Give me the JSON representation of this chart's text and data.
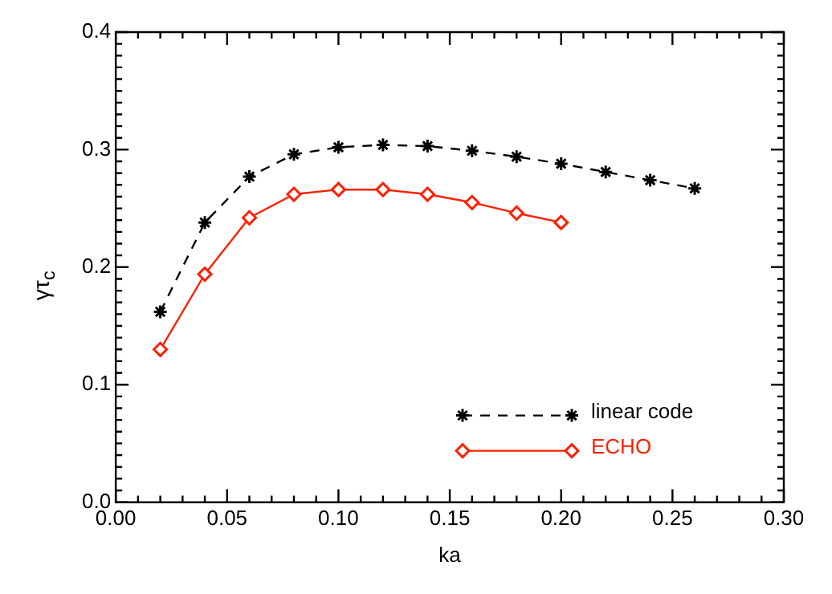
{
  "chart_data": {
    "type": "line",
    "xlabel": "ka",
    "ylabel": "γτ$_{c}$",
    "xlim": [
      0,
      0.3
    ],
    "xticks": [
      {
        "value": 0,
        "label": "0.00"
      },
      0.05,
      {
        "value": 0.1,
        "label": "0.10"
      },
      0.15,
      {
        "value": 0.2,
        "label": "0.20"
      },
      0.25,
      {
        "value": 0.3,
        "label": "0.30"
      }
    ],
    "ylim": [
      0,
      0.4
    ],
    "yticks": [
      {
        "value": 0,
        "label": "0.0"
      },
      0.1,
      0.2,
      0.3,
      0.4
    ],
    "legend": "bottom right",
    "grid": false,
    "series": [
      {
        "name": "linear code",
        "color": "#000000",
        "marker": "cross",
        "line_style": "dashed",
        "x": [
          0.02,
          0.04,
          0.06,
          0.08,
          0.1,
          0.12,
          0.14,
          0.16,
          0.18,
          0.2,
          0.22,
          0.24,
          0.26
        ],
        "values": [
          0.162,
          0.238,
          0.277,
          0.296,
          0.302,
          0.304,
          0.303,
          0.299,
          0.294,
          0.288,
          0.281,
          0.274,
          0.267
        ]
      },
      {
        "name": "ECHO",
        "color": "#ff2000",
        "marker": "diamond",
        "line_style": "solid",
        "x": [
          0.02,
          0.04,
          0.06,
          0.08,
          0.1,
          0.12,
          0.14,
          0.16,
          0.18,
          0.2
        ],
        "values": [
          0.13,
          0.194,
          0.242,
          0.262,
          0.266,
          0.266,
          0.262,
          0.255,
          0.246,
          0.238
        ]
      }
    ]
  }
}
